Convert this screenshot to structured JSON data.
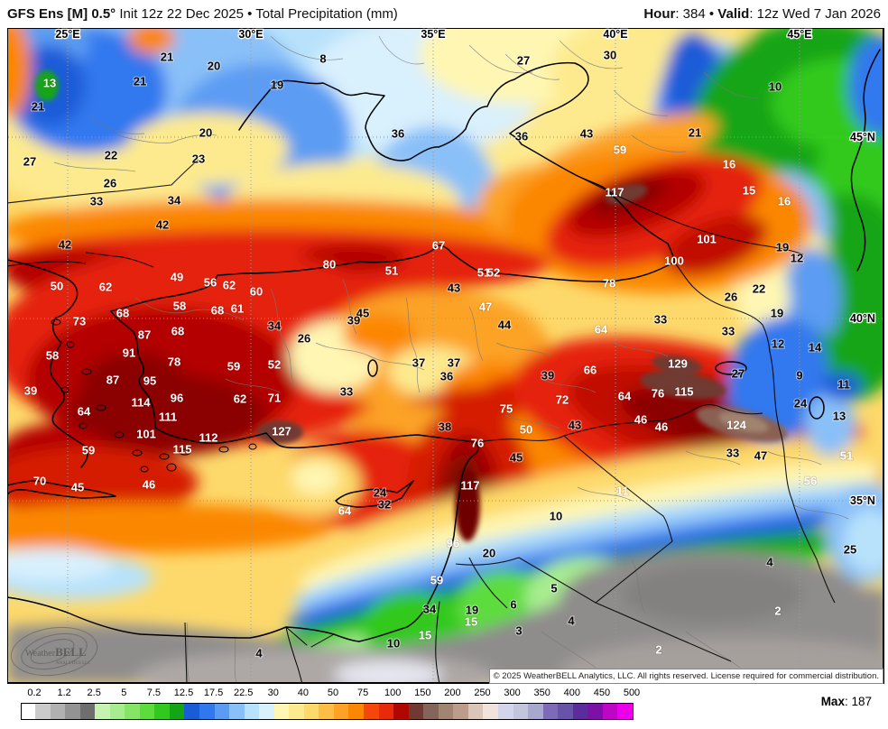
{
  "header": {
    "left_bold": "GFS Ens [M] 0.5°",
    "left_rest": " Init 12z 22 Dec 2025 • Total Precipitation (mm)",
    "hour_label": "Hour",
    "hour_rest": ": 384 • ",
    "valid_label": "Valid",
    "valid_rest": ": 12z Wed 7 Jan 2026"
  },
  "map": {
    "grid": {
      "lon_labels": [
        [
          "25°E",
          75
        ],
        [
          "30°E",
          278
        ],
        [
          "35°E",
          480
        ],
        [
          "40°E",
          682
        ],
        [
          "45°E",
          886
        ]
      ],
      "lat_labels": [
        [
          "45°N",
          152
        ],
        [
          "40°N",
          353
        ],
        [
          "35°N",
          555
        ]
      ]
    },
    "watermark": {
      "name_a": "Weather",
      "name_b": "BELL",
      "sub": "ANALYTICS LLC"
    },
    "copyright": "© 2025 WeatherBELL Analytics, LLC. All rights reserved. License required for commercial distribution.",
    "stations": [
      [
        "13",
        55,
        92,
        "w"
      ],
      [
        "21",
        42,
        118,
        "k"
      ],
      [
        "21",
        155,
        90,
        "k"
      ],
      [
        "21",
        185,
        63,
        "k"
      ],
      [
        "20",
        237,
        73,
        "k"
      ],
      [
        "19",
        307,
        94,
        "k"
      ],
      [
        "20",
        228,
        147,
        "k"
      ],
      [
        "23",
        220,
        176,
        "k"
      ],
      [
        "27",
        33,
        179,
        "k"
      ],
      [
        "22",
        123,
        172,
        "k"
      ],
      [
        "26",
        122,
        203,
        "k"
      ],
      [
        "33",
        107,
        223,
        "k"
      ],
      [
        "34",
        193,
        222,
        "k"
      ],
      [
        "8",
        358,
        65,
        "k"
      ],
      [
        "27",
        580,
        67,
        "k"
      ],
      [
        "36",
        441,
        148,
        "k"
      ],
      [
        "36",
        578,
        151,
        "k"
      ],
      [
        "43",
        650,
        148,
        "k"
      ],
      [
        "30",
        676,
        61,
        "k"
      ],
      [
        "10",
        859,
        96,
        "k"
      ],
      [
        "21",
        770,
        147,
        "k"
      ],
      [
        "59",
        687,
        166,
        "w"
      ],
      [
        "16",
        808,
        182,
        "w"
      ],
      [
        "15",
        830,
        211,
        "w"
      ],
      [
        "16",
        869,
        223,
        "w"
      ],
      [
        "117",
        681,
        213,
        "w"
      ],
      [
        "42",
        180,
        249,
        "k"
      ],
      [
        "42",
        72,
        271,
        "k"
      ],
      [
        "49",
        196,
        307,
        "w"
      ],
      [
        "50",
        63,
        317,
        "w"
      ],
      [
        "62",
        117,
        318,
        "w"
      ],
      [
        "56",
        233,
        313,
        "w"
      ],
      [
        "62",
        254,
        316,
        "w"
      ],
      [
        "60",
        284,
        323,
        "w"
      ],
      [
        "58",
        199,
        339,
        "w"
      ],
      [
        "68",
        241,
        344,
        "w"
      ],
      [
        "61",
        263,
        342,
        "w"
      ],
      [
        "68",
        136,
        347,
        "w"
      ],
      [
        "73",
        88,
        356,
        "w"
      ],
      [
        "34",
        304,
        361,
        "k"
      ],
      [
        "87",
        160,
        371,
        "w"
      ],
      [
        "68",
        197,
        367,
        "w"
      ],
      [
        "91",
        143,
        391,
        "w"
      ],
      [
        "58",
        58,
        394,
        "w"
      ],
      [
        "78",
        193,
        401,
        "w"
      ],
      [
        "59",
        259,
        406,
        "w"
      ],
      [
        "52",
        304,
        404,
        "w"
      ],
      [
        "87",
        125,
        421,
        "w"
      ],
      [
        "95",
        166,
        422,
        "w"
      ],
      [
        "39",
        34,
        433,
        "w"
      ],
      [
        "64",
        93,
        456,
        "w"
      ],
      [
        "96",
        196,
        441,
        "w"
      ],
      [
        "62",
        266,
        442,
        "w"
      ],
      [
        "71",
        304,
        441,
        "w"
      ],
      [
        "114",
        156,
        446,
        "w"
      ],
      [
        "111",
        186,
        462,
        "w"
      ],
      [
        "101",
        162,
        481,
        "w"
      ],
      [
        "112",
        231,
        485,
        "w"
      ],
      [
        "127",
        312,
        478,
        "w"
      ],
      [
        "115",
        202,
        498,
        "w"
      ],
      [
        "59",
        98,
        499,
        "w"
      ],
      [
        "70",
        44,
        533,
        "w"
      ],
      [
        "45",
        86,
        540,
        "w"
      ],
      [
        "46",
        165,
        537,
        "w"
      ],
      [
        "80",
        365,
        293,
        "w"
      ],
      [
        "67",
        486,
        272,
        "w"
      ],
      [
        "51",
        434,
        300,
        "w"
      ],
      [
        "51",
        536,
        302,
        "w"
      ],
      [
        "52",
        547,
        302,
        "w"
      ],
      [
        "43",
        503,
        319,
        "k"
      ],
      [
        "47",
        538,
        340,
        "w"
      ],
      [
        "44",
        559,
        360,
        "k"
      ],
      [
        "45",
        402,
        347,
        "k"
      ],
      [
        "39",
        392,
        355,
        "k"
      ],
      [
        "26",
        337,
        375,
        "k"
      ],
      [
        "37",
        464,
        402,
        "k"
      ],
      [
        "37",
        503,
        402,
        "k"
      ],
      [
        "36",
        495,
        417,
        "k"
      ],
      [
        "39",
        607,
        416,
        "k"
      ],
      [
        "66",
        654,
        410,
        "w"
      ],
      [
        "101",
        783,
        265,
        "w"
      ],
      [
        "100",
        747,
        289,
        "w"
      ],
      [
        "78",
        675,
        314,
        "w"
      ],
      [
        "19",
        867,
        274,
        "k"
      ],
      [
        "12",
        883,
        286,
        "k"
      ],
      [
        "22",
        841,
        320,
        "k"
      ],
      [
        "26",
        810,
        329,
        "k"
      ],
      [
        "19",
        861,
        347,
        "k"
      ],
      [
        "33",
        732,
        354,
        "k"
      ],
      [
        "64",
        666,
        365,
        "w"
      ],
      [
        "33",
        807,
        367,
        "k"
      ],
      [
        "12",
        862,
        381,
        "k"
      ],
      [
        "14",
        903,
        385,
        "k"
      ],
      [
        "129",
        751,
        403,
        "w"
      ],
      [
        "27",
        818,
        414,
        "k"
      ],
      [
        "9",
        886,
        416,
        "k"
      ],
      [
        "11",
        935,
        426,
        "k"
      ],
      [
        "33",
        384,
        434,
        "k"
      ],
      [
        "38",
        493,
        473,
        "k"
      ],
      [
        "75",
        561,
        453,
        "w"
      ],
      [
        "72",
        623,
        443,
        "w"
      ],
      [
        "50",
        583,
        476,
        "w"
      ],
      [
        "43",
        637,
        471,
        "k"
      ],
      [
        "76",
        529,
        491,
        "w"
      ],
      [
        "45",
        572,
        507,
        "k"
      ],
      [
        "117",
        521,
        538,
        "w"
      ],
      [
        "64",
        382,
        566,
        "w"
      ],
      [
        "24",
        421,
        546,
        "k"
      ],
      [
        "32",
        426,
        559,
        "k"
      ],
      [
        "10",
        616,
        572,
        "k"
      ],
      [
        "96",
        502,
        602,
        "w"
      ],
      [
        "20",
        542,
        613,
        "k"
      ],
      [
        "64",
        692,
        439,
        "w"
      ],
      [
        "76",
        729,
        436,
        "w"
      ],
      [
        "115",
        758,
        434,
        "w"
      ],
      [
        "46",
        710,
        465,
        "w"
      ],
      [
        "46",
        733,
        473,
        "w"
      ],
      [
        "124",
        816,
        471,
        "w"
      ],
      [
        "24",
        887,
        447,
        "k"
      ],
      [
        "13",
        930,
        461,
        "k"
      ],
      [
        "33",
        812,
        502,
        "k"
      ],
      [
        "47",
        843,
        505,
        "k"
      ],
      [
        "51",
        938,
        505,
        "w"
      ],
      [
        "56",
        898,
        533,
        "w"
      ],
      [
        "11",
        690,
        544,
        "w"
      ],
      [
        "25",
        942,
        609,
        "k"
      ],
      [
        "59",
        484,
        643,
        "w"
      ],
      [
        "34",
        476,
        675,
        "k"
      ],
      [
        "19",
        523,
        676,
        "k"
      ],
      [
        "15",
        522,
        689,
        "w"
      ],
      [
        "15",
        471,
        704,
        "w"
      ],
      [
        "10",
        436,
        713,
        "k"
      ],
      [
        "6",
        569,
        670,
        "k"
      ],
      [
        "5",
        614,
        652,
        "k"
      ],
      [
        "3",
        575,
        699,
        "k"
      ],
      [
        "4",
        633,
        688,
        "k"
      ],
      [
        "4",
        287,
        724,
        "k"
      ],
      [
        "4",
        853,
        623,
        "k"
      ],
      [
        "2",
        862,
        677,
        "w"
      ],
      [
        "2",
        730,
        720,
        "w"
      ]
    ]
  },
  "colorbar": {
    "labels": [
      "0.2",
      "1.2",
      "2.5",
      "5",
      "7.5",
      "12.5",
      "17.5",
      "22.5",
      "30",
      "40",
      "50",
      "75",
      "100",
      "150",
      "200",
      "250",
      "300",
      "350",
      "400",
      "450",
      "500"
    ],
    "colors": [
      "#FFFFFF",
      "#CBCBCB",
      "#B1B1B1",
      "#939393",
      "#6E6E6E",
      "#C6F3B0",
      "#A7ED8F",
      "#85E665",
      "#5DDC3D",
      "#31C91F",
      "#13A513",
      "#1A5CD8",
      "#3078EE",
      "#5B9CF3",
      "#8AC0F8",
      "#B8E2FB",
      "#D9F0FD",
      "#FEF6B2",
      "#FDEA8E",
      "#FDD96B",
      "#FDBE45",
      "#FCA325",
      "#FB8705",
      "#F4480A",
      "#E62A0A",
      "#B00801",
      "#703A32",
      "#84655A",
      "#A08672",
      "#BC9D8B",
      "#D9C6B9",
      "#F0E3DB",
      "#D2D6E8",
      "#C2C5DC",
      "#A8A8CE",
      "#7E6BB7",
      "#6753A8",
      "#5B2C9B",
      "#7D10A6",
      "#BE06C6",
      "#EC00EC"
    ],
    "max_label": "Max",
    "max_sep": ": ",
    "max_value": "187"
  }
}
